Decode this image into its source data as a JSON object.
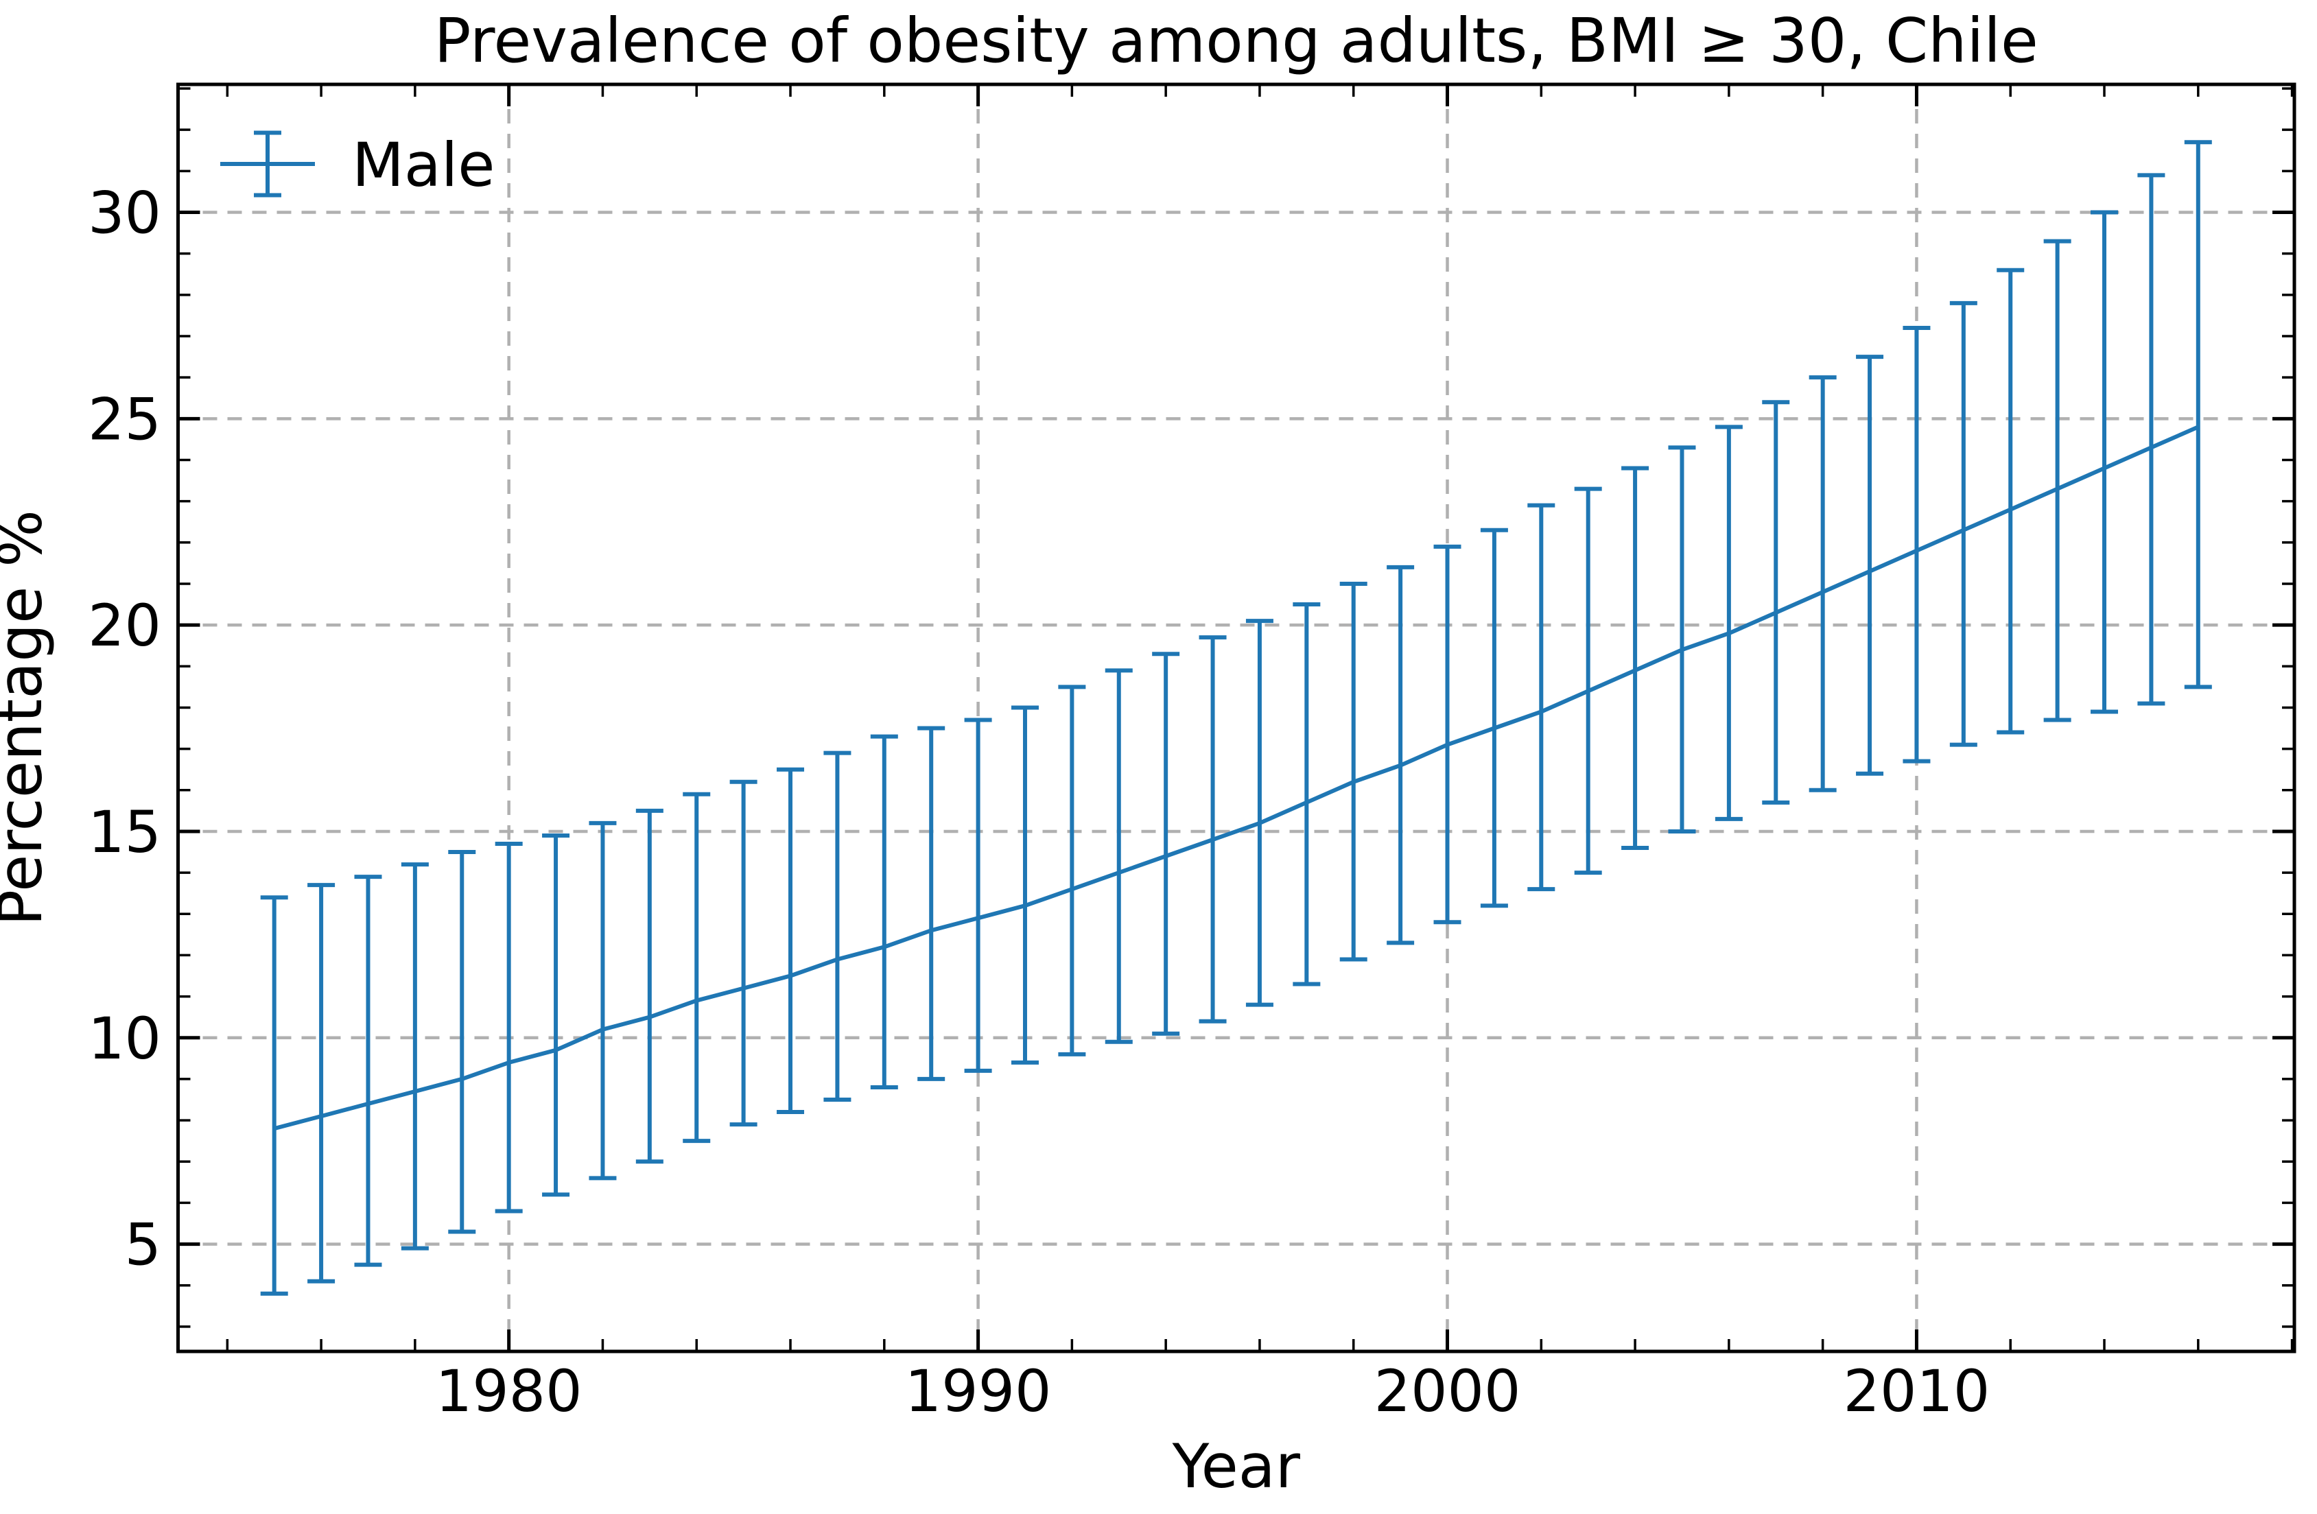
{
  "title": "Prevalence of obesity among adults, BMI ≥ 30, Chile",
  "legend": {
    "label": "Male",
    "position": "upper left",
    "frame": false
  },
  "colors": {
    "series": "#1f77b4",
    "grid": "#b0b0b0",
    "spine": "#000000",
    "text": "#000000",
    "background": "#ffffff"
  },
  "axes": {
    "xlabel": "Year",
    "ylabel": "Percentage %",
    "x_tick_labels": [
      "1980",
      "1990",
      "2000",
      "2010"
    ],
    "y_tick_labels": [
      "5",
      "10",
      "15",
      "20",
      "25",
      "30"
    ]
  },
  "chart_data": {
    "type": "line",
    "title": "Prevalence of obesity among adults, BMI ≥ 30, Chile",
    "xlabel": "Year",
    "ylabel": "Percentage %",
    "grid": true,
    "grid_style": "dashed",
    "legend_position": "upper left",
    "xlim": [
      1972.95,
      2018.05
    ],
    "ylim": [
      2.4,
      33.1
    ],
    "xticks": [
      1980,
      1990,
      2000,
      2010
    ],
    "yticks": [
      5,
      10,
      15,
      20,
      25,
      30
    ],
    "x_minor_step": 2,
    "y_minor_step": 1,
    "x": [
      1975,
      1976,
      1977,
      1978,
      1979,
      1980,
      1981,
      1982,
      1983,
      1984,
      1985,
      1986,
      1987,
      1988,
      1989,
      1990,
      1991,
      1992,
      1993,
      1994,
      1995,
      1996,
      1997,
      1998,
      1999,
      2000,
      2001,
      2002,
      2003,
      2004,
      2005,
      2006,
      2007,
      2008,
      2009,
      2010,
      2011,
      2012,
      2013,
      2014,
      2015,
      2016
    ],
    "series": [
      {
        "name": "Male",
        "values": [
          7.8,
          8.1,
          8.4,
          8.7,
          9.0,
          9.4,
          9.7,
          10.2,
          10.5,
          10.9,
          11.2,
          11.5,
          11.9,
          12.2,
          12.6,
          12.9,
          13.2,
          13.6,
          14.0,
          14.4,
          14.8,
          15.2,
          15.7,
          16.2,
          16.6,
          17.1,
          17.5,
          17.9,
          18.4,
          18.9,
          19.4,
          19.8,
          20.3,
          20.8,
          21.3,
          21.8,
          22.3,
          22.8,
          23.3,
          23.8,
          24.3,
          24.8
        ],
        "lower": [
          3.8,
          4.1,
          4.5,
          4.9,
          5.3,
          5.8,
          6.2,
          6.6,
          7.0,
          7.5,
          7.9,
          8.2,
          8.5,
          8.8,
          9.0,
          9.2,
          9.4,
          9.6,
          9.9,
          10.1,
          10.4,
          10.8,
          11.3,
          11.9,
          12.3,
          12.8,
          13.2,
          13.6,
          14.0,
          14.6,
          15.0,
          15.3,
          15.7,
          16.0,
          16.4,
          16.7,
          17.1,
          17.4,
          17.7,
          17.9,
          18.1,
          18.5
        ],
        "upper": [
          13.4,
          13.7,
          13.9,
          14.2,
          14.5,
          14.7,
          14.9,
          15.2,
          15.5,
          15.9,
          16.2,
          16.5,
          16.9,
          17.3,
          17.5,
          17.7,
          18.0,
          18.5,
          18.9,
          19.3,
          19.7,
          20.1,
          20.5,
          21.0,
          21.4,
          21.9,
          22.3,
          22.9,
          23.3,
          23.8,
          24.3,
          24.8,
          25.4,
          26.0,
          26.5,
          27.2,
          27.8,
          28.6,
          29.3,
          30.0,
          30.9,
          31.7
        ]
      }
    ]
  }
}
